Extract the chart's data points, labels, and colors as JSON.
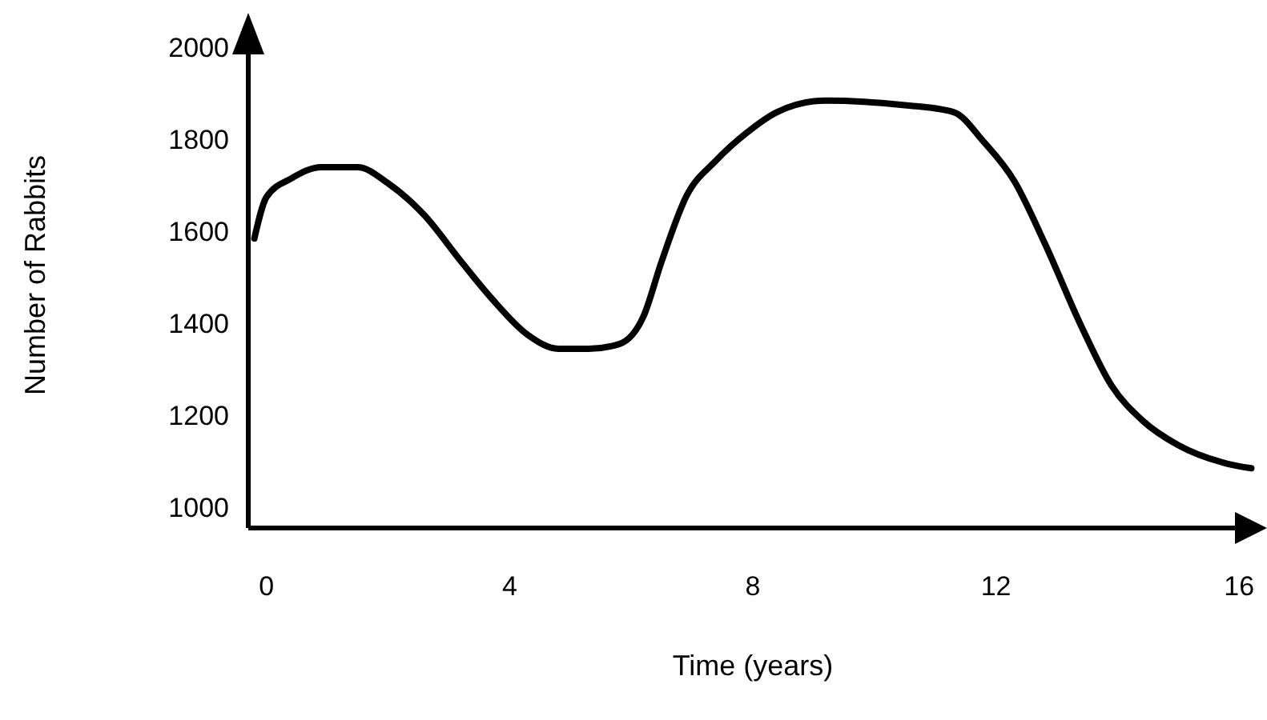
{
  "chart_data": {
    "type": "line",
    "xlabel": "Time (years)",
    "ylabel": "Number of Rabbits",
    "xlim": [
      -0.3,
      16.3
    ],
    "ylim": [
      960,
      2060
    ],
    "xticks": [
      0,
      4,
      8,
      12,
      16
    ],
    "yticks": [
      1000,
      1200,
      1400,
      1600,
      1800,
      2000
    ],
    "grid": false,
    "marker": "none",
    "line_style": "solid",
    "series": [
      {
        "color": "#000000",
        "x": [
          -0.2,
          0,
          0.4,
          0.9,
          1.5,
          2.0,
          2.6,
          3.2,
          3.7,
          4.3,
          4.8,
          5.3,
          5.8,
          6.2,
          6.5,
          6.9,
          7.4,
          7.9,
          8.4,
          9.2,
          10.5,
          11.3,
          11.8,
          12.3,
          12.8,
          13.4,
          13.9,
          14.4,
          15.0,
          15.8,
          16.2
        ],
        "values": [
          1590,
          1680,
          1720,
          1745,
          1745,
          1710,
          1640,
          1540,
          1460,
          1380,
          1350,
          1350,
          1360,
          1420,
          1540,
          1680,
          1760,
          1820,
          1865,
          1890,
          1880,
          1865,
          1800,
          1715,
          1580,
          1400,
          1270,
          1195,
          1140,
          1100,
          1090
        ]
      }
    ]
  }
}
